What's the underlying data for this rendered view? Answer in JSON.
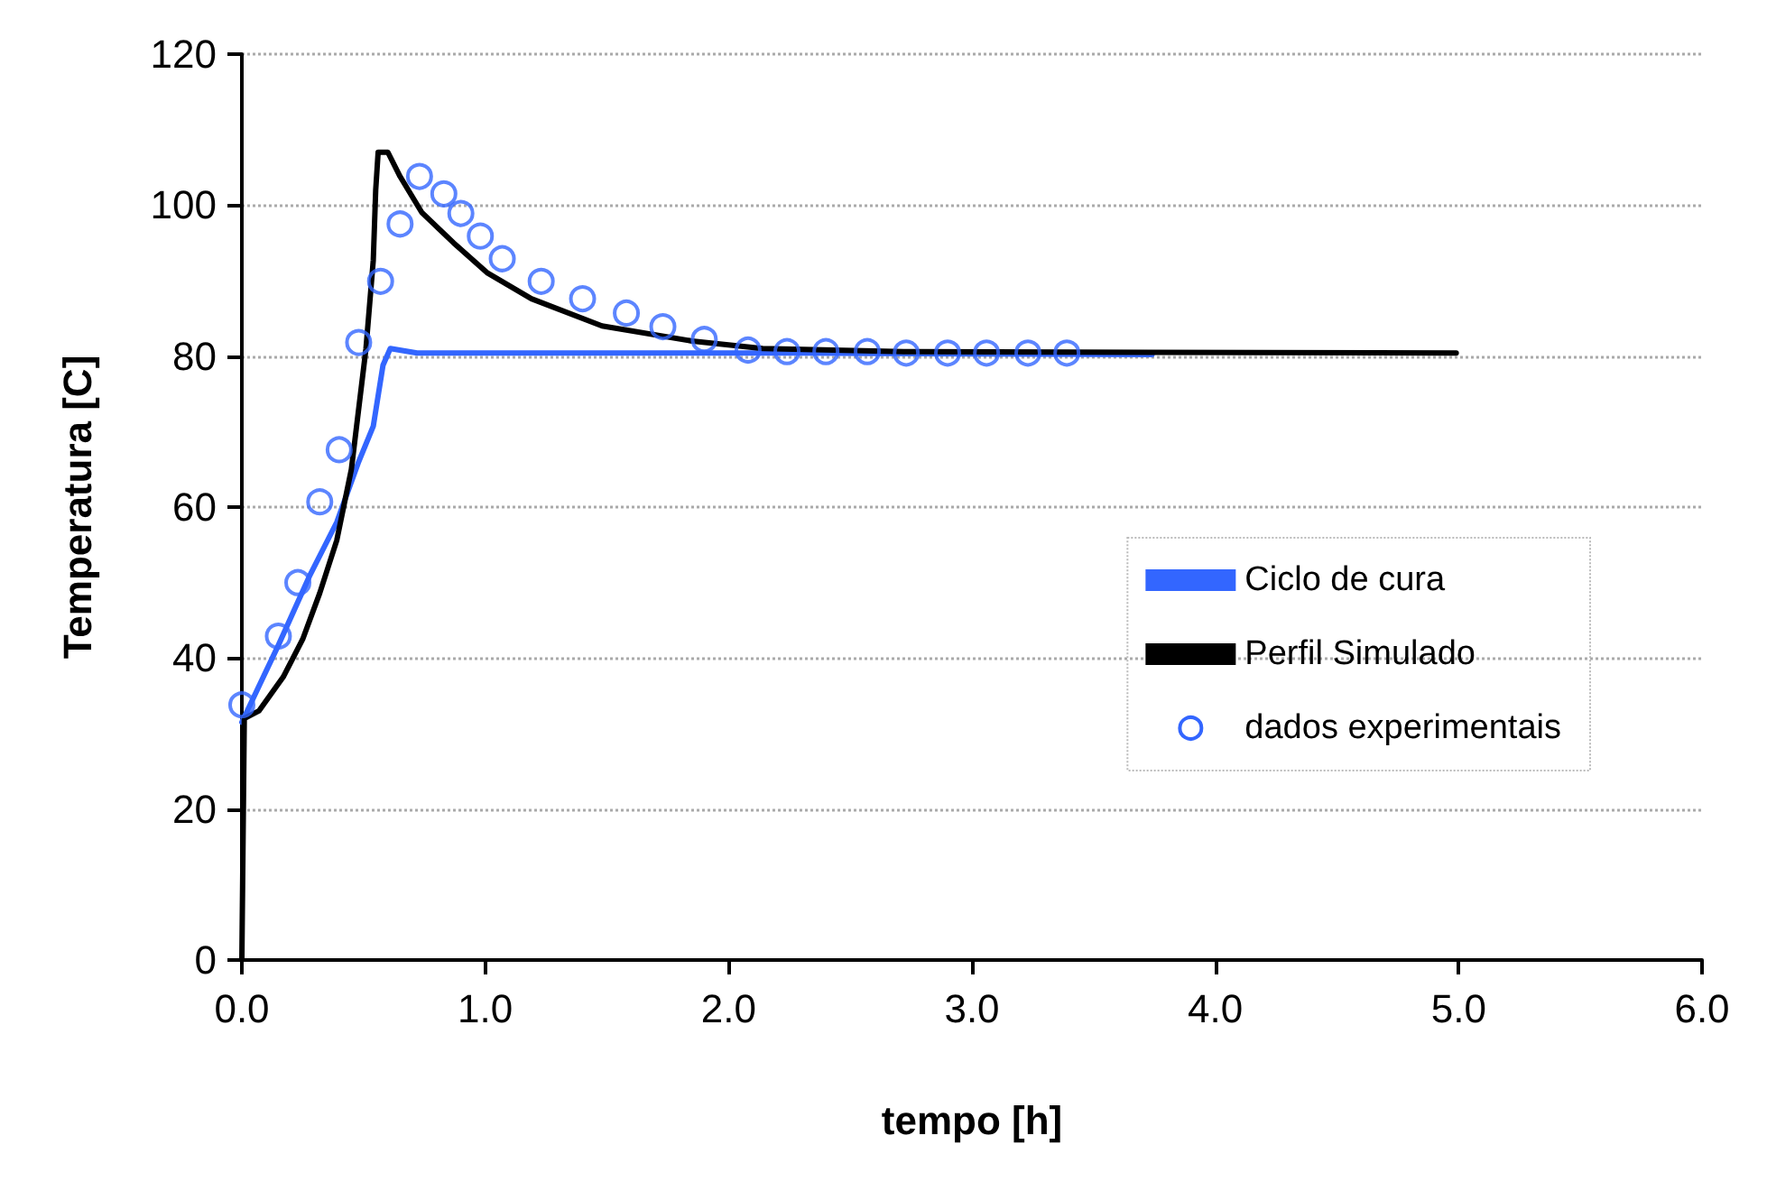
{
  "chart_data": {
    "type": "line",
    "xlabel": "tempo [h]",
    "ylabel": "Temperatura [C]",
    "xlim": [
      0,
      6
    ],
    "xticks": [
      {
        "value": 0,
        "label": "0.0"
      },
      {
        "value": 1,
        "label": "1.0"
      },
      {
        "value": 2,
        "label": "2.0"
      },
      {
        "value": 3,
        "label": "3.0"
      },
      {
        "value": 4,
        "label": "4.0"
      },
      {
        "value": 5,
        "label": "5.0"
      },
      {
        "value": 6,
        "label": "6.0"
      }
    ],
    "ylim": [
      0,
      120
    ],
    "yticks": [
      0,
      20,
      40,
      60,
      80,
      100,
      120
    ],
    "grid": "y",
    "legend": "right",
    "series": [
      {
        "name": "Ciclo de cura",
        "type": "line",
        "color": "#3366ff",
        "x": [
          0,
          0.15,
          0.28,
          0.39,
          0.48,
          0.54,
          0.58,
          0.61,
          0.72,
          1.12,
          2.28,
          3.74
        ],
        "values": [
          31.5,
          41.7,
          51,
          58,
          66,
          70.7,
          78.8,
          81,
          80.4,
          80.4,
          80.4,
          80.2
        ]
      },
      {
        "name": "Perfil Simulado",
        "type": "line",
        "color": "#000000",
        "x": [
          0,
          0.01,
          0.07,
          0.17,
          0.25,
          0.32,
          0.39,
          0.45,
          0.51,
          0.54,
          0.55,
          0.56,
          0.6,
          0.65,
          0.74,
          0.87,
          1.01,
          1.19,
          1.48,
          1.85,
          2.14,
          2.72,
          4.99
        ],
        "values": [
          0,
          32,
          33,
          37.5,
          42.5,
          48.6,
          55.6,
          65,
          81,
          92.7,
          102,
          107,
          107,
          103.8,
          99,
          95,
          91,
          87.6,
          84,
          82,
          81,
          80.6,
          80.4
        ]
      },
      {
        "name": "dados experimentais",
        "type": "scatter",
        "color": "#3366ff",
        "marker": "circle",
        "x": [
          0,
          0.15,
          0.23,
          0.32,
          0.4,
          0.48,
          0.57,
          0.65,
          0.73,
          0.83,
          0.9,
          0.98,
          1.07,
          1.23,
          1.4,
          1.58,
          1.73,
          1.9,
          2.08,
          2.24,
          2.4,
          2.57,
          2.73,
          2.9,
          3.06,
          3.23,
          3.39
        ],
        "values": [
          33.8,
          42.9,
          50,
          60.7,
          67.6,
          81.8,
          89.9,
          97.5,
          103.8,
          101.5,
          98.9,
          95.9,
          92.9,
          89.9,
          87.6,
          85.7,
          83.9,
          82.2,
          80.8,
          80.6,
          80.6,
          80.6,
          80.4,
          80.4,
          80.4,
          80.4,
          80.4
        ]
      }
    ]
  }
}
